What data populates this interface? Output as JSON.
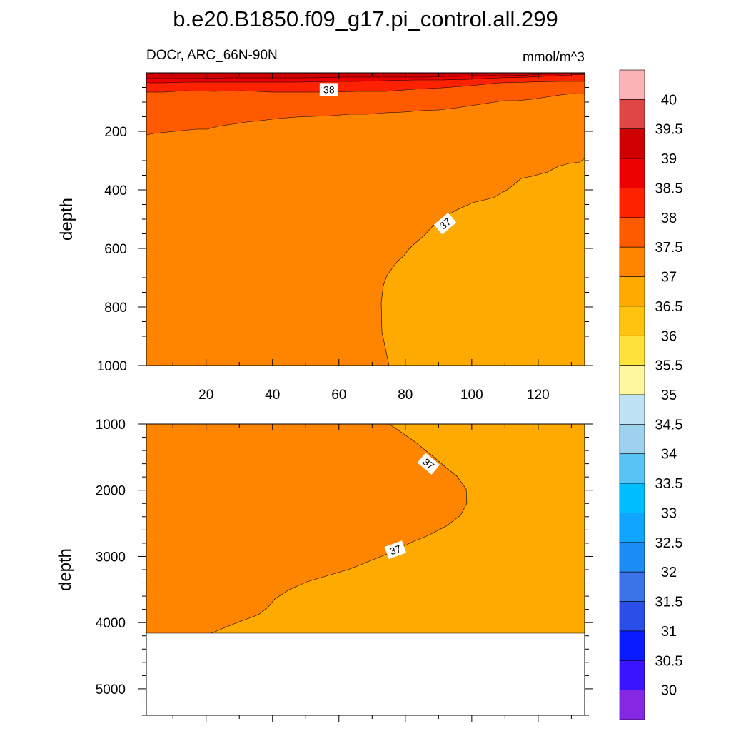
{
  "chart_data": [
    {
      "type": "contour",
      "title": "b.e20.B1850.f09_g17.pi_control.all.299",
      "left_subtitle": "DOCr, ARC_66N-90N",
      "right_subtitle": "mmol/m^3",
      "xlabel": "",
      "ylabel": "depth",
      "xlim": [
        2,
        134
      ],
      "ylim": [
        1000,
        0
      ],
      "x_ticks": [
        "20",
        "40",
        "60",
        "80",
        "100",
        "120"
      ],
      "y_ticks": [
        "200",
        "400",
        "600",
        "800",
        "1000"
      ],
      "contour_labels": [
        {
          "value": "38",
          "x": 57,
          "y": 57
        },
        {
          "value": "37",
          "x": 92,
          "y": 515
        }
      ]
    },
    {
      "type": "contour",
      "xlabel": "",
      "ylabel": "depth",
      "xlim": [
        2,
        134
      ],
      "ylim": [
        5400,
        1000
      ],
      "bottom_depth": 4130,
      "y_ticks": [
        "1000",
        "2000",
        "3000",
        "4000",
        "5000"
      ],
      "contour_labels": [
        {
          "value": "37",
          "x": 87,
          "y": 1600
        },
        {
          "value": "37",
          "x": 77,
          "y": 2900
        }
      ]
    }
  ],
  "colorbar": {
    "labels": [
      "40",
      "39.5",
      "39",
      "38.5",
      "38",
      "37.5",
      "37",
      "36.5",
      "36",
      "35.5",
      "35",
      "34.5",
      "34",
      "33.5",
      "33",
      "32.5",
      "32",
      "31.5",
      "31",
      "30.5",
      "30"
    ],
    "colors": [
      "#fcb3b6",
      "#e04545",
      "#d10000",
      "#ef0000",
      "#ff2200",
      "#ff5a00",
      "#ff8400",
      "#ffaa00",
      "#ffc20e",
      "#ffe13c",
      "#fff7a0",
      "#bfe3f5",
      "#9dd1ee",
      "#58c4f5",
      "#00bfff",
      "#10a6ff",
      "#1e8cf5",
      "#3a74e8",
      "#2b4ee8",
      "#0a1bff",
      "#3a14ff",
      "#8428e6"
    ]
  }
}
